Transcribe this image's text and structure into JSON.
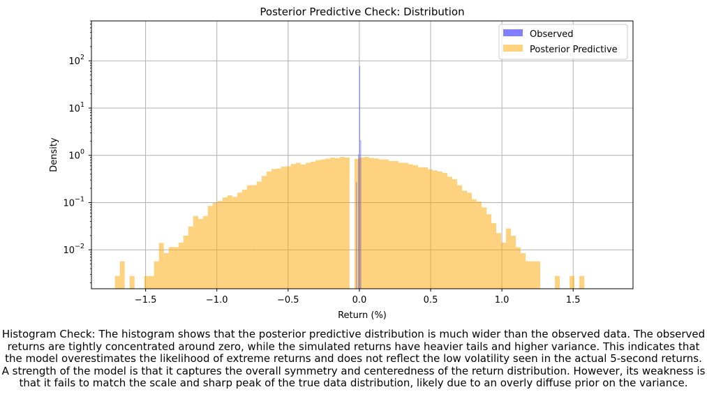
{
  "chart_data": {
    "type": "bar",
    "title": "Posterior Predictive Check: Distribution",
    "xlabel": "Return (%)",
    "ylabel": "Density",
    "xlim": [
      -1.88,
      1.92
    ],
    "ylim": [
      0.0015,
      700
    ],
    "yscale": "log",
    "grid": true,
    "legend_position": "top-right",
    "x_ticks": [
      -1.5,
      -1.0,
      -0.5,
      0.0,
      0.5,
      1.0,
      1.5
    ],
    "x_tick_labels": [
      "−1.5",
      "−1.0",
      "−0.5",
      "0.0",
      "0.5",
      "1.0",
      "1.5"
    ],
    "y_ticks": [
      {
        "value": 0.01,
        "base": "10",
        "exp": "−2"
      },
      {
        "value": 0.1,
        "base": "10",
        "exp": "−1"
      },
      {
        "value": 1,
        "base": "10",
        "exp": "0"
      },
      {
        "value": 10,
        "base": "10",
        "exp": "1"
      },
      {
        "value": 100,
        "base": "10",
        "exp": "2"
      }
    ],
    "series": [
      {
        "name": "Observed",
        "color": "#0000ff",
        "opacity": 0.5,
        "bins": [
          {
            "x0": -0.022,
            "x1": -0.019,
            "y": 0.27
          },
          {
            "x0": -0.008,
            "x1": -0.005,
            "y": 1.05
          },
          {
            "x0": 0.0,
            "x1": 0.004,
            "y": 78
          },
          {
            "x0": 0.008,
            "x1": 0.011,
            "y": 2.1
          }
        ]
      },
      {
        "name": "Posterior Predictive",
        "color": "#ffa500",
        "opacity": 0.5,
        "bin_start": -1.715,
        "bin_width": 0.0343,
        "values": [
          0.0028,
          0.0057,
          0,
          0.0028,
          0,
          0,
          0.0028,
          0.0028,
          0.0057,
          0.014,
          0.0085,
          0.0114,
          0.0114,
          0.0142,
          0.0199,
          0.0312,
          0.052,
          0.045,
          0.052,
          0.085,
          0.098,
          0.108,
          0.128,
          0.142,
          0.132,
          0.162,
          0.188,
          0.232,
          0.235,
          0.278,
          0.365,
          0.455,
          0.512,
          0.525,
          0.578,
          0.585,
          0.658,
          0.695,
          0.638,
          0.695,
          0.735,
          0.788,
          0.818,
          0.848,
          0.898,
          0.875,
          0.925,
          0.898,
          0,
          0.845,
          0.898,
          0.925,
          0.878,
          0.858,
          0.818,
          0.818,
          0.758,
          0.758,
          0.695,
          0.695,
          0.645,
          0.618,
          0.558,
          0.558,
          0.505,
          0.478,
          0.455,
          0.425,
          0.352,
          0.312,
          0.232,
          0.178,
          0.162,
          0.118,
          0.105,
          0.0792,
          0.0565,
          0.0368,
          0.0226,
          0.0142,
          0.0283,
          0.0198,
          0.0113,
          0.0085,
          0.0057,
          0.0057,
          0.0057,
          0,
          0,
          0,
          0.0028,
          0,
          0,
          0.0028,
          0,
          0.0028
        ]
      }
    ]
  },
  "caption": "Histogram Check: The histogram shows that the posterior predictive distribution is much wider than the observed data. The observed returns are tightly concentrated around zero, while the simulated returns have heavier tails and higher variance. This indicates that the model overestimates the likelihood of extreme returns and does not reflect the low volatility seen in the actual 5-second returns. A strength of the model is that it captures the overall symmetry and centeredness of the return distribution. However, its weakness is that it fails to match the scale and sharp peak of the true data distribution, likely due to an overly diffuse prior on the variance."
}
